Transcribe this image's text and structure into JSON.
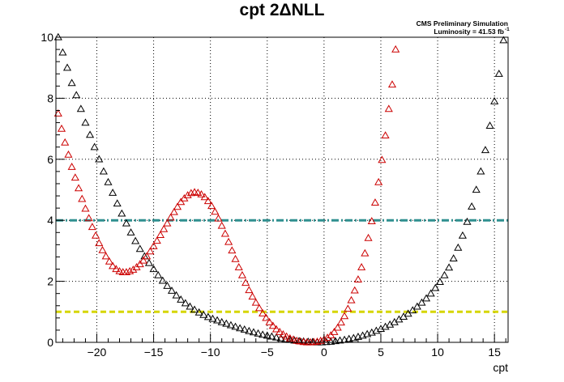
{
  "chart_data": {
    "type": "scatter",
    "title": "cpt 2ΔNLL",
    "annotations": [
      "CMS Preliminary Simulation",
      "Luminosity = 41.53 fb"
    ],
    "lumi_superscript": "-1",
    "xlabel": "cpt",
    "ylabel": "",
    "xlim": [
      -23.6,
      16.2
    ],
    "ylim": [
      0,
      10
    ],
    "xticks": [
      -20,
      -15,
      -10,
      -5,
      0,
      5,
      10,
      15
    ],
    "xtick_labels": [
      "−20",
      "−15",
      "−10",
      "−5",
      "0",
      "5",
      "10",
      "15"
    ],
    "yticks": [
      0,
      2,
      4,
      6,
      8,
      10
    ],
    "ytick_labels": [
      "0",
      "2",
      "4",
      "6",
      "8",
      "10"
    ],
    "grid": true,
    "reference_lines": [
      {
        "y": 4,
        "color": "#2f8f8f",
        "style": "dash-dot"
      },
      {
        "y": 1,
        "color": "#d6d600",
        "style": "dashed"
      }
    ],
    "series": [
      {
        "color": "#000000",
        "marker": "open-triangle",
        "x": [
          -23.4,
          -23,
          -22.6,
          -22.2,
          -21.8,
          -21.4,
          -21,
          -20.6,
          -20.2,
          -19.8,
          -19.4,
          -19,
          -18.6,
          -18.2,
          -17.8,
          -17.4,
          -17,
          -16.6,
          -16.2,
          -15.8,
          -15.4,
          -15,
          -14.6,
          -14.2,
          -13.8,
          -13.4,
          -13,
          -12.6,
          -12.2,
          -11.8,
          -11.4,
          -11,
          -10.6,
          -10.2,
          -9.8,
          -9.4,
          -9,
          -8.6,
          -8.2,
          -7.8,
          -7.4,
          -7,
          -6.6,
          -6.2,
          -5.8,
          -5.4,
          -5,
          -4.6,
          -4.2,
          -3.8,
          -3.4,
          -3,
          -2.6,
          -2.2,
          -1.8,
          -1.4,
          -1,
          -0.6,
          -0.2,
          0.2,
          0.6,
          1,
          1.4,
          1.8,
          2.2,
          2.6,
          3,
          3.4,
          3.8,
          4.2,
          4.6,
          5,
          5.4,
          5.8,
          6.2,
          6.6,
          7,
          7.4,
          7.8,
          8.2,
          8.6,
          9,
          9.4,
          9.8,
          10.2,
          10.6,
          11,
          11.4,
          11.8,
          12.2,
          12.6,
          13,
          13.4,
          13.8,
          14.2,
          14.6,
          15,
          15.4,
          15.8
        ],
        "y": [
          10,
          9.5,
          9,
          8.5,
          8.1,
          7.65,
          7.2,
          6.8,
          6.4,
          6,
          5.6,
          5.25,
          4.9,
          4.55,
          4.22,
          3.9,
          3.6,
          3.32,
          3.06,
          2.82,
          2.6,
          2.4,
          2.2,
          2.02,
          1.85,
          1.69,
          1.54,
          1.4,
          1.28,
          1.17,
          1.07,
          0.98,
          0.9,
          0.83,
          0.77,
          0.72,
          0.66,
          0.61,
          0.56,
          0.51,
          0.46,
          0.42,
          0.37,
          0.33,
          0.29,
          0.25,
          0.22,
          0.19,
          0.16,
          0.13,
          0.1,
          0.08,
          0.06,
          0.04,
          0.03,
          0.02,
          0.01,
          0,
          0,
          0.01,
          0.02,
          0.04,
          0.06,
          0.08,
          0.11,
          0.14,
          0.18,
          0.22,
          0.27,
          0.32,
          0.38,
          0.44,
          0.51,
          0.58,
          0.66,
          0.75,
          0.84,
          0.94,
          1.05,
          1.17,
          1.3,
          1.44,
          1.6,
          1.78,
          1.98,
          2.2,
          2.45,
          2.75,
          3.1,
          3.5,
          3.95,
          4.45,
          5,
          5.6,
          6.3,
          7.1,
          7.9,
          8.8,
          9.9
        ]
      },
      {
        "color": "#cc0000",
        "marker": "open-triangle",
        "x": [
          -23.4,
          -23.1,
          -22.8,
          -22.5,
          -22.2,
          -21.9,
          -21.6,
          -21.3,
          -21,
          -20.7,
          -20.4,
          -20.1,
          -19.8,
          -19.5,
          -19.2,
          -18.9,
          -18.6,
          -18.3,
          -18,
          -17.7,
          -17.4,
          -17.1,
          -16.8,
          -16.5,
          -16.2,
          -15.9,
          -15.6,
          -15.3,
          -15,
          -14.7,
          -14.4,
          -14.1,
          -13.8,
          -13.5,
          -13.2,
          -12.9,
          -12.6,
          -12.3,
          -12,
          -11.7,
          -11.4,
          -11.1,
          -10.8,
          -10.5,
          -10.2,
          -9.9,
          -9.6,
          -9.3,
          -9,
          -8.7,
          -8.4,
          -8.1,
          -7.8,
          -7.5,
          -7.2,
          -6.9,
          -6.6,
          -6.3,
          -6,
          -5.7,
          -5.4,
          -5.1,
          -4.8,
          -4.5,
          -4.2,
          -3.9,
          -3.6,
          -3.3,
          -3,
          -2.7,
          -2.4,
          -2.1,
          -1.8,
          -1.5,
          -1.2,
          -0.9,
          -0.6,
          -0.3,
          0,
          0.3,
          0.6,
          0.9,
          1.2,
          1.5,
          1.8,
          2.1,
          2.4,
          2.7,
          3,
          3.3,
          3.6,
          3.9,
          4.2,
          4.5,
          4.8,
          5.1,
          5.4,
          5.7,
          6,
          6.3
        ],
        "y": [
          7.5,
          7,
          6.55,
          6.15,
          5.75,
          5.4,
          5.05,
          4.7,
          4.38,
          4.07,
          3.78,
          3.5,
          3.25,
          3.02,
          2.82,
          2.65,
          2.5,
          2.4,
          2.33,
          2.3,
          2.3,
          2.33,
          2.38,
          2.46,
          2.56,
          2.68,
          2.82,
          2.98,
          3.15,
          3.33,
          3.52,
          3.71,
          3.9,
          4.09,
          4.27,
          4.44,
          4.6,
          4.72,
          4.82,
          4.89,
          4.92,
          4.9,
          4.85,
          4.76,
          4.63,
          4.47,
          4.28,
          4.06,
          3.82,
          3.56,
          3.29,
          3.01,
          2.73,
          2.46,
          2.2,
          1.95,
          1.71,
          1.5,
          1.3,
          1.12,
          0.95,
          0.8,
          0.66,
          0.54,
          0.43,
          0.34,
          0.26,
          0.19,
          0.13,
          0.09,
          0.05,
          0.03,
          0.01,
          0,
          0,
          0.01,
          0.02,
          0.05,
          0.09,
          0.15,
          0.23,
          0.34,
          0.48,
          0.65,
          0.86,
          1.1,
          1.38,
          1.7,
          2.06,
          2.46,
          2.92,
          3.42,
          3.97,
          4.58,
          5.25,
          5.98,
          6.78,
          7.65,
          8.45,
          9.6
        ]
      }
    ]
  }
}
